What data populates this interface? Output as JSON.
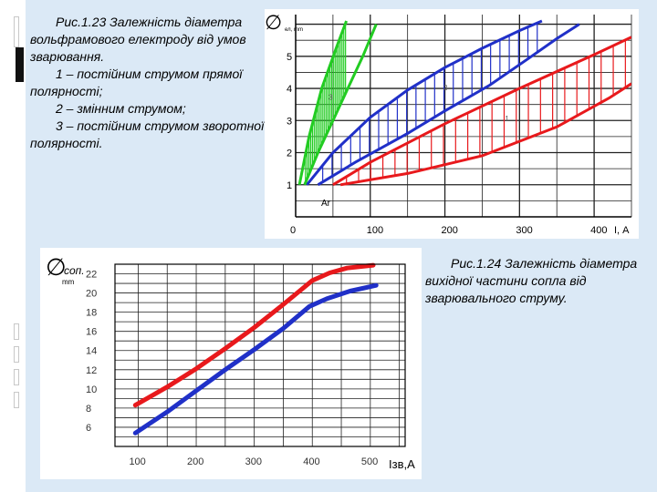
{
  "captions": {
    "fig1_title": "Рис.1.23 Залежність діаметра вольфрамового електроду від умов зварювання.",
    "fig1_item1": "1 – постійним струмом прямої полярності;",
    "fig1_item2": "2 – змінним струмом;",
    "fig1_item3": "3 – постійним струмом зворотної полярності.",
    "fig2_title": "Рис.1.24 Залежність діаметра вихідної частини сопла від зварювального струму."
  },
  "chart_data": [
    {
      "type": "area",
      "x_axis_label": "І, А",
      "y_axis_symbol": "∅",
      "y_axis_subscript": "ел, mm",
      "shielding_gas_label": "Ar",
      "xlim": [
        0,
        450
      ],
      "ylim": [
        0,
        6.3
      ],
      "x_ticks": [
        0,
        100,
        200,
        300,
        400
      ],
      "y_ticks": [
        1,
        2,
        3,
        4,
        5
      ],
      "grid": true,
      "series": [
        {
          "name": "1",
          "color": "#e8191c",
          "lower": [
            [
              60,
              1.0
            ],
            [
              150,
              1.35
            ],
            [
              250,
              1.9
            ],
            [
              350,
              2.8
            ],
            [
              420,
              3.7
            ],
            [
              450,
              4.15
            ]
          ],
          "upper": [
            [
              50,
              1.0
            ],
            [
              100,
              1.7
            ],
            [
              200,
              2.9
            ],
            [
              300,
              4.0
            ],
            [
              400,
              5.05
            ],
            [
              450,
              5.6
            ]
          ]
        },
        {
          "name": "2",
          "color": "#2030c8",
          "lower": [
            [
              30,
              1.0
            ],
            [
              80,
              1.7
            ],
            [
              150,
              2.6
            ],
            [
              200,
              3.3
            ],
            [
              260,
              4.1
            ],
            [
              310,
              4.9
            ],
            [
              350,
              5.55
            ],
            [
              380,
              6.0
            ]
          ],
          "upper": [
            [
              15,
              1.0
            ],
            [
              50,
              2.0
            ],
            [
              100,
              3.1
            ],
            [
              150,
              3.95
            ],
            [
              200,
              4.65
            ],
            [
              250,
              5.25
            ],
            [
              300,
              5.8
            ],
            [
              330,
              6.1
            ]
          ]
        },
        {
          "name": "3",
          "color": "#22cc22",
          "lower": [
            [
              12,
              1.0
            ],
            [
              30,
              2.0
            ],
            [
              50,
              3.0
            ],
            [
              70,
              4.0
            ],
            [
              90,
              5.0
            ],
            [
              108,
              6.0
            ]
          ],
          "upper": [
            [
              5,
              1.0
            ],
            [
              18,
              2.5
            ],
            [
              35,
              4.0
            ],
            [
              55,
              5.3
            ],
            [
              68,
              6.1
            ]
          ]
        }
      ]
    },
    {
      "type": "line",
      "x_axis_label": "Ізв,А",
      "y_axis_symbol": "∅",
      "y_axis_subscript": "соп.",
      "y_unit": "mm",
      "xlim": [
        60,
        560
      ],
      "ylim": [
        4,
        23
      ],
      "x_ticks": [
        100,
        200,
        300,
        400,
        500
      ],
      "y_ticks": [
        6,
        8,
        10,
        12,
        14,
        16,
        18,
        20,
        22
      ],
      "grid": true,
      "series": [
        {
          "color": "#e8191c",
          "points": [
            [
              95,
              8.3
            ],
            [
              150,
              10.2
            ],
            [
              200,
              12.1
            ],
            [
              250,
              14.2
            ],
            [
              300,
              16.4
            ],
            [
              350,
              18.8
            ],
            [
              400,
              21.3
            ],
            [
              430,
              22.1
            ],
            [
              460,
              22.6
            ],
            [
              505,
              22.9
            ]
          ]
        },
        {
          "color": "#2030c8",
          "points": [
            [
              95,
              5.4
            ],
            [
              150,
              7.6
            ],
            [
              200,
              9.8
            ],
            [
              250,
              12.0
            ],
            [
              300,
              14.1
            ],
            [
              350,
              16.3
            ],
            [
              395,
              18.6
            ],
            [
              425,
              19.4
            ],
            [
              465,
              20.2
            ],
            [
              510,
              20.8
            ]
          ]
        }
      ]
    }
  ]
}
